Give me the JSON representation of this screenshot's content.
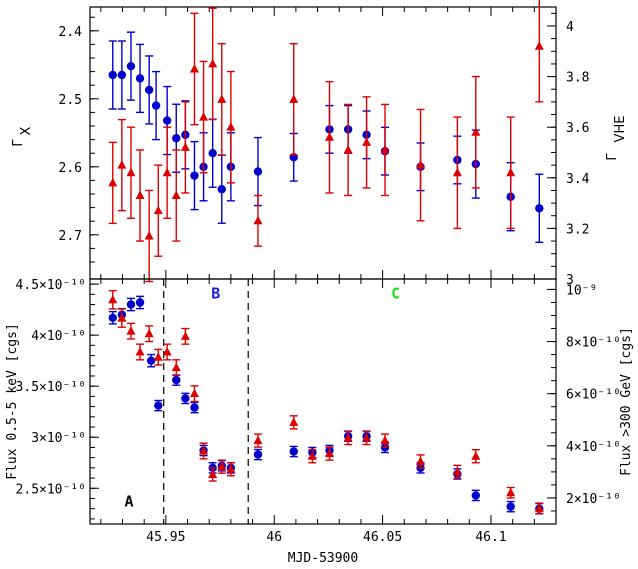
{
  "chart_data": [
    {
      "type": "scatter",
      "panel": "top",
      "ylabel_left": "Γ",
      "ylabel_left_sub": "X",
      "ylabel_right": "Γ",
      "ylabel_right_sub": "VHE",
      "xlim": [
        45.915,
        46.13
      ],
      "ylim_left": [
        2.765,
        2.365
      ],
      "ylim_right": [
        4.075,
        3.0
      ],
      "left_ticks": [
        "2.4",
        "2.5",
        "2.6",
        "2.7"
      ],
      "left_tick_values": [
        2.4,
        2.5,
        2.6,
        2.7
      ],
      "right_ticks": [
        "3",
        "3.2",
        "3.4",
        "3.6",
        "3.8",
        "4"
      ],
      "right_tick_values": [
        3.0,
        3.2,
        3.4,
        3.6,
        3.8,
        4.0
      ],
      "series": [
        {
          "color": "#0000cc",
          "marker": "circle",
          "axis": "left",
          "points": [
            [
              45.9255,
              2.465,
              0.05
            ],
            [
              45.9297,
              2.465,
              0.05
            ],
            [
              45.9339,
              2.452,
              0.05
            ],
            [
              45.9381,
              2.47,
              0.05
            ],
            [
              45.9423,
              2.487,
              0.05
            ],
            [
              45.9455,
              2.51,
              0.05
            ],
            [
              45.9506,
              2.532,
              0.05
            ],
            [
              45.9548,
              2.558,
              0.05
            ],
            [
              45.959,
              2.553,
              0.05
            ],
            [
              45.9632,
              2.613,
              0.05
            ],
            [
              45.9674,
              2.6,
              0.05
            ],
            [
              45.9716,
              2.58,
              0.05
            ],
            [
              45.9758,
              2.633,
              0.05
            ],
            [
              45.98,
              2.6,
              0.05
            ],
            [
              45.9925,
              2.607,
              0.05
            ],
            [
              46.009,
              2.586,
              0.035
            ],
            [
              46.0255,
              2.545,
              0.035
            ],
            [
              46.0341,
              2.545,
              0.035
            ],
            [
              46.0426,
              2.553,
              0.035
            ],
            [
              46.0511,
              2.577,
              0.035
            ],
            [
              46.0675,
              2.6,
              0.035
            ],
            [
              46.0845,
              2.59,
              0.035
            ],
            [
              46.093,
              2.596,
              0.05
            ],
            [
              46.1091,
              2.644,
              0.05
            ],
            [
              46.1223,
              2.661,
              0.05
            ]
          ]
        },
        {
          "color": "#dd0000",
          "marker": "triangle",
          "axis": "right",
          "points": [
            [
              45.9255,
              3.38,
              0.16
            ],
            [
              45.9297,
              3.45,
              0.18
            ],
            [
              45.9339,
              3.42,
              0.18
            ],
            [
              45.9381,
              3.33,
              0.18
            ],
            [
              45.9423,
              3.17,
              0.18
            ],
            [
              45.9465,
              3.27,
              0.18
            ],
            [
              45.9506,
              3.42,
              0.18
            ],
            [
              45.9548,
              3.33,
              0.18
            ],
            [
              45.959,
              3.52,
              0.18
            ],
            [
              45.9632,
              3.83,
              0.22
            ],
            [
              45.9674,
              3.64,
              0.22
            ],
            [
              45.9716,
              3.85,
              0.22
            ],
            [
              45.9758,
              3.71,
              0.22
            ],
            [
              45.98,
              3.6,
              0.22
            ],
            [
              45.9925,
              3.23,
              0.1
            ],
            [
              46.009,
              3.71,
              0.22
            ],
            [
              46.0255,
              3.56,
              0.22
            ],
            [
              46.0341,
              3.51,
              0.18
            ],
            [
              46.0426,
              3.54,
              0.18
            ],
            [
              46.0511,
              3.51,
              0.18
            ],
            [
              46.0675,
              3.45,
              0.22
            ],
            [
              46.0845,
              3.42,
              0.22
            ],
            [
              46.093,
              3.58,
              0.22
            ],
            [
              46.1091,
              3.42,
              0.22
            ],
            [
              46.1223,
              3.92,
              0.22
            ]
          ]
        }
      ]
    },
    {
      "type": "scatter",
      "panel": "bottom",
      "xlabel": "MJD-53900",
      "ylabel_left": "Flux 0.5-5 keV [cgs]",
      "ylabel_right": "Flux >300 GeV [cgs]",
      "xlim": [
        45.915,
        46.13
      ],
      "ylim_left": [
        2.15,
        4.55
      ],
      "ylim_right": [
        1.0,
        10.4
      ],
      "x_ticks": [
        "45.95",
        "46",
        "46.05",
        "46.1"
      ],
      "x_tick_values": [
        45.95,
        46.0,
        46.05,
        46.1
      ],
      "left_ticks": [
        "2.5×10⁻¹⁰",
        "3×10⁻¹⁰",
        "3.5×10⁻¹⁰",
        "4×10⁻¹⁰",
        "4.5×10⁻¹⁰"
      ],
      "left_tick_values": [
        2.5,
        3.0,
        3.5,
        4.0,
        4.5
      ],
      "right_ticks": [
        "2×10⁻¹⁰",
        "4×10⁻¹⁰",
        "6×10⁻¹⁰",
        "8×10⁻¹⁰",
        "10⁻⁹"
      ],
      "right_tick_values": [
        2,
        4,
        6,
        8,
        10
      ],
      "dividers": [
        45.949,
        45.988
      ],
      "regions": [
        {
          "label": "A",
          "x": 45.933,
          "y": 2.32,
          "color": "#000000"
        },
        {
          "label": "B",
          "x": 45.973,
          "y": 4.36,
          "color": "#1a1aee"
        },
        {
          "label": "C",
          "x": 46.056,
          "y": 4.36,
          "color": "#22dd22"
        }
      ],
      "series": [
        {
          "color": "#0000cc",
          "marker": "circle",
          "axis": "left",
          "points": [
            [
              45.9255,
              4.17,
              0.06
            ],
            [
              45.9297,
              4.2,
              0.06
            ],
            [
              45.9339,
              4.3,
              0.06
            ],
            [
              45.9381,
              4.32,
              0.06
            ],
            [
              45.9432,
              3.75,
              0.06
            ],
            [
              45.9465,
              3.31,
              0.05
            ],
            [
              45.9548,
              3.56,
              0.05
            ],
            [
              45.959,
              3.38,
              0.05
            ],
            [
              45.9632,
              3.29,
              0.05
            ],
            [
              45.9674,
              2.87,
              0.05
            ],
            [
              45.9716,
              2.7,
              0.05
            ],
            [
              45.9758,
              2.72,
              0.05
            ],
            [
              45.98,
              2.7,
              0.05
            ],
            [
              45.9925,
              2.83,
              0.05
            ],
            [
              46.009,
              2.86,
              0.05
            ],
            [
              46.0176,
              2.85,
              0.05
            ],
            [
              46.0255,
              2.87,
              0.05
            ],
            [
              46.0341,
              3.01,
              0.05
            ],
            [
              46.0426,
              3.01,
              0.05
            ],
            [
              46.0511,
              2.9,
              0.05
            ],
            [
              46.0675,
              2.7,
              0.05
            ],
            [
              46.0845,
              2.64,
              0.05
            ],
            [
              46.093,
              2.43,
              0.05
            ],
            [
              46.1091,
              2.32,
              0.05
            ],
            [
              46.1223,
              2.3,
              0.05
            ]
          ]
        },
        {
          "color": "#dd0000",
          "marker": "triangle",
          "axis": "right",
          "points": [
            [
              45.9255,
              9.6,
              0.35
            ],
            [
              45.9297,
              8.9,
              0.35
            ],
            [
              45.9339,
              8.4,
              0.3
            ],
            [
              45.9381,
              7.6,
              0.3
            ],
            [
              45.9423,
              8.3,
              0.3
            ],
            [
              45.9465,
              7.4,
              0.3
            ],
            [
              45.9506,
              7.6,
              0.3
            ],
            [
              45.9548,
              7.0,
              0.3
            ],
            [
              45.959,
              8.2,
              0.3
            ],
            [
              45.9632,
              6.0,
              0.3
            ],
            [
              45.9674,
              3.8,
              0.3
            ],
            [
              45.9716,
              2.9,
              0.25
            ],
            [
              45.9758,
              3.2,
              0.25
            ],
            [
              45.98,
              3.1,
              0.25
            ],
            [
              45.9925,
              4.2,
              0.25
            ],
            [
              46.009,
              4.9,
              0.25
            ],
            [
              46.0176,
              3.6,
              0.25
            ],
            [
              46.0255,
              3.7,
              0.25
            ],
            [
              46.0341,
              4.3,
              0.25
            ],
            [
              46.0426,
              4.3,
              0.25
            ],
            [
              46.0511,
              4.2,
              0.25
            ],
            [
              46.0675,
              3.4,
              0.25
            ],
            [
              46.0845,
              3.0,
              0.25
            ],
            [
              46.093,
              3.6,
              0.25
            ],
            [
              46.1091,
              2.2,
              0.2
            ],
            [
              46.1223,
              1.6,
              0.2
            ]
          ]
        }
      ]
    }
  ]
}
